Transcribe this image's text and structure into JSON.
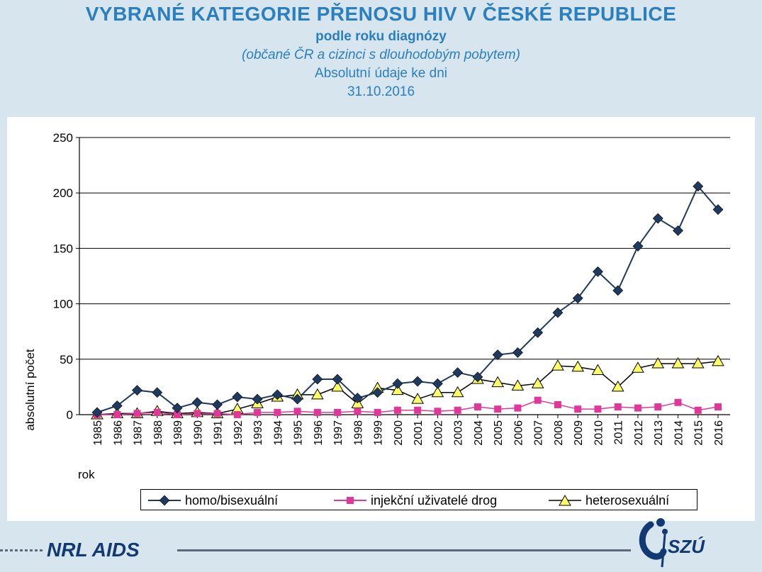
{
  "header": {
    "title": "VYBRANÉ KATEGORIE PŘENOSU HIV V ČESKÉ REPUBLICE",
    "subtitle": "podle roku diagnózy",
    "note": "(občané ČR a cizinci s dlouhodobým pobytem)",
    "date_line1": "Absolutní údaje ke dni",
    "date_line2": "31.10.2016"
  },
  "chart_data": {
    "type": "line",
    "xlabel": "rok",
    "ylabel": "absolutní počet",
    "ylim": [
      0,
      250
    ],
    "yticks": [
      0,
      50,
      100,
      150,
      200,
      250
    ],
    "grid": true,
    "legend_position": "bottom",
    "categories": [
      "1985",
      "1986",
      "1987",
      "1988",
      "1989",
      "1990",
      "1991",
      "1992",
      "1993",
      "1994",
      "1995",
      "1996",
      "1997",
      "1998",
      "1999",
      "2000",
      "2001",
      "2002",
      "2003",
      "2004",
      "2005",
      "2006",
      "2007",
      "2008",
      "2009",
      "2010",
      "2011",
      "2012",
      "2013",
      "2014",
      "2015",
      "2016"
    ],
    "series": [
      {
        "name": "homo/bisexuální",
        "marker": "diamond",
        "color": "#1f3a5f",
        "values": [
          2,
          8,
          22,
          20,
          6,
          11,
          9,
          16,
          14,
          18,
          14,
          32,
          32,
          15,
          20,
          28,
          30,
          28,
          38,
          34,
          54,
          56,
          74,
          92,
          105,
          129,
          112,
          152,
          177,
          166,
          206,
          185
        ]
      },
      {
        "name": "injekční uživatelé drog",
        "marker": "square",
        "color": "#e0389a",
        "values": [
          0,
          0,
          1,
          2,
          0,
          1,
          1,
          0,
          2,
          2,
          3,
          2,
          2,
          3,
          2,
          4,
          4,
          3,
          4,
          7,
          5,
          6,
          13,
          9,
          5,
          5,
          7,
          6,
          7,
          11,
          4,
          7
        ]
      },
      {
        "name": "heterosexuální",
        "marker": "triangle",
        "color": "#ffff66",
        "values": [
          0,
          1,
          1,
          3,
          1,
          2,
          1,
          5,
          10,
          16,
          18,
          18,
          25,
          10,
          24,
          22,
          14,
          20,
          20,
          32,
          29,
          26,
          28,
          44,
          43,
          40,
          25,
          42,
          46,
          46,
          46,
          48
        ]
      }
    ]
  },
  "footer": {
    "left_text": "NRL AIDS",
    "logo_text": "SZÚ"
  }
}
